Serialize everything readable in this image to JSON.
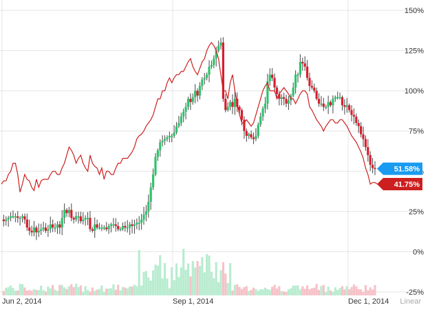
{
  "chart_data": {
    "type": "line",
    "x_ticks": [
      "Jun 2, 2014",
      "Sep 1, 2014",
      "Dec 1, 2014"
    ],
    "y_ticks": [
      "150%",
      "125%",
      "100%",
      "75%",
      "50%",
      "25%",
      "0%",
      "-25%"
    ],
    "ylim": [
      -25,
      150
    ],
    "scale_label": "Linear",
    "grid": true,
    "series": [
      {
        "color": "#cc1f1f",
        "last_label": "41.75%",
        "values": [
          42,
          44,
          44,
          48,
          50,
          55,
          55,
          48,
          37,
          42,
          48,
          45,
          44,
          40,
          38,
          45,
          40,
          44,
          45,
          45,
          45,
          48,
          50,
          50,
          48,
          48,
          52,
          55,
          60,
          65,
          63,
          60,
          55,
          58,
          60,
          55,
          52,
          50,
          60,
          55,
          53,
          52,
          48,
          52,
          45,
          50,
          50,
          48,
          48,
          52,
          55,
          55,
          58,
          58,
          58,
          60,
          62,
          65,
          70,
          72,
          73,
          75,
          78,
          80,
          82,
          85,
          90,
          95,
          95,
          100,
          100,
          105,
          108,
          105,
          108,
          110,
          110,
          112,
          112,
          115,
          118,
          120,
          115,
          112,
          110,
          114,
          118,
          120,
          125,
          128,
          130,
          128,
          125,
          120,
          110,
          100,
          100,
          95,
          105,
          110,
          100,
          92,
          85,
          80,
          80,
          82,
          80,
          78,
          80,
          85,
          90,
          95,
          100,
          103,
          105,
          100,
          100,
          100,
          95,
          98,
          100,
          102,
          100,
          98,
          95,
          95,
          92,
          95,
          98,
          100,
          100,
          98,
          90,
          88,
          85,
          82,
          80,
          78,
          75,
          78,
          80,
          82,
          82,
          80,
          80,
          82,
          82,
          80,
          78,
          75,
          72,
          70,
          68,
          65,
          62,
          58,
          52,
          48,
          42,
          43,
          43,
          42
        ]
      },
      {
        "color": "#1a9bf0",
        "last_label": "51.58%",
        "values": [
          20,
          19,
          20,
          21,
          22,
          22,
          22,
          21,
          21,
          22,
          20,
          15,
          13,
          12,
          15,
          12,
          13,
          14,
          15,
          13,
          14,
          17,
          15,
          15,
          17,
          15,
          21,
          26,
          24,
          26,
          21,
          20,
          22,
          22,
          19,
          20,
          21,
          21,
          14,
          13,
          17,
          15,
          15,
          15,
          15,
          14,
          16,
          17,
          17,
          16,
          14,
          14,
          16,
          15,
          15,
          17,
          16,
          17,
          18,
          18,
          20,
          23,
          25,
          31,
          40,
          48,
          59,
          63,
          68,
          69,
          70,
          71,
          72,
          72,
          74,
          78,
          80,
          84,
          87,
          90,
          95,
          93,
          96,
          100,
          97,
          103,
          107,
          108,
          110,
          115,
          116,
          120,
          125,
          128,
          130,
          95,
          88,
          90,
          93,
          90,
          95,
          90,
          88,
          82,
          75,
          72,
          73,
          71,
          70,
          72,
          79,
          84,
          89,
          92,
          106,
          110,
          108,
          102,
          98,
          95,
          96,
          95,
          92,
          94,
          97,
          102,
          110,
          110,
          118,
          117,
          115,
          108,
          103,
          102,
          100,
          95,
          92,
          92,
          90,
          90,
          93,
          91,
          95,
          96,
          96,
          96,
          91,
          90,
          91,
          88,
          85,
          84,
          80,
          78,
          73,
          70,
          65,
          60,
          54,
          52,
          51.58
        ]
      }
    ]
  }
}
